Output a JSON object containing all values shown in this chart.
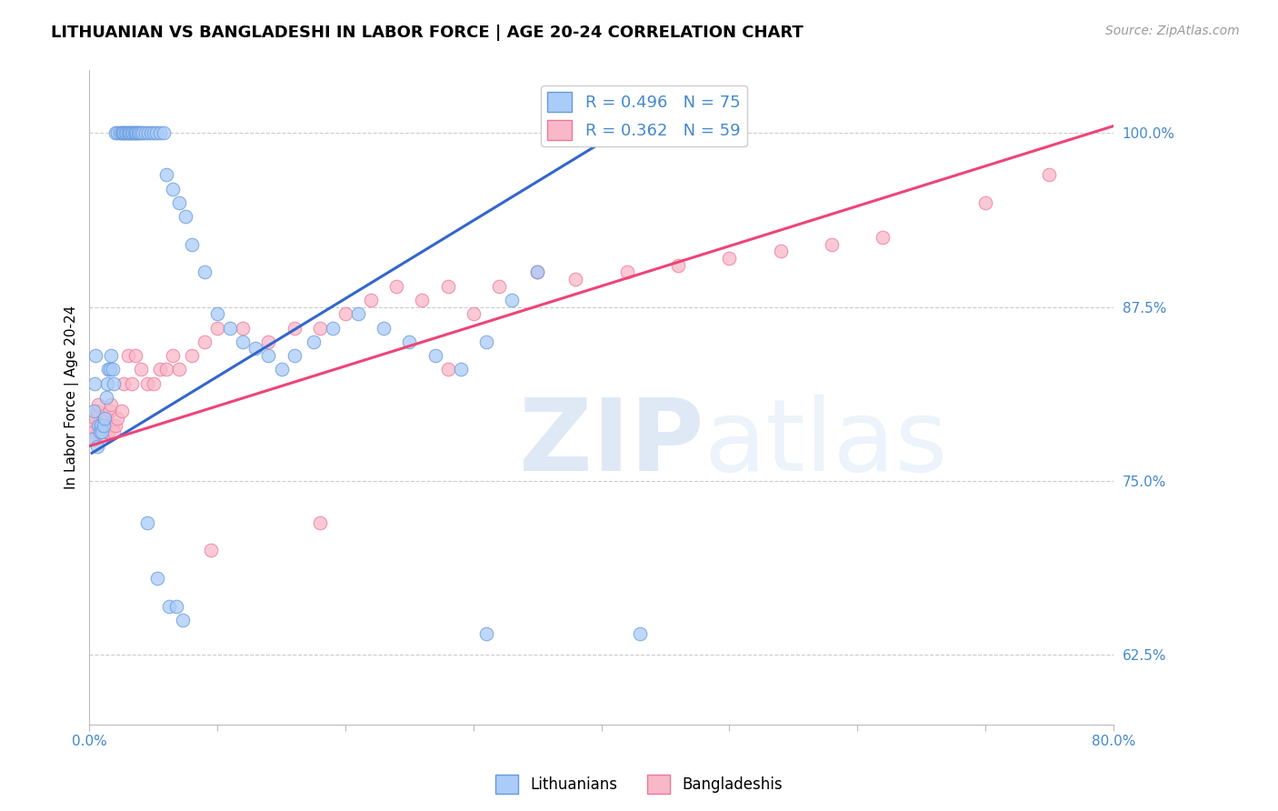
{
  "title": "LITHUANIAN VS BANGLADESHI IN LABOR FORCE | AGE 20-24 CORRELATION CHART",
  "source": "Source: ZipAtlas.com",
  "ylabel": "In Labor Force | Age 20-24",
  "xlim": [
    0.0,
    0.8
  ],
  "ylim": [
    0.575,
    1.045
  ],
  "yticks": [
    0.625,
    0.75,
    0.875,
    1.0
  ],
  "ytick_labels": [
    "62.5%",
    "75.0%",
    "87.5%",
    "100.0%"
  ],
  "xticks": [
    0.0,
    0.1,
    0.2,
    0.3,
    0.4,
    0.5,
    0.6,
    0.7,
    0.8
  ],
  "xtick_labels": [
    "0.0%",
    "",
    "",
    "",
    "",
    "",
    "",
    "",
    "80.0%"
  ],
  "blue_R": 0.496,
  "blue_N": 75,
  "pink_R": 0.362,
  "pink_N": 59,
  "blue_color": "#aaccf8",
  "pink_color": "#f9b8c8",
  "blue_edge": "#6699dd",
  "pink_edge": "#ee7799",
  "trend_blue": "#3366cc",
  "trend_pink": "#ee4477",
  "axis_color": "#4488cc",
  "grid_color": "#cccccc",
  "title_fontsize": 13,
  "source_fontsize": 10,
  "legend_fontsize": 13,
  "axis_label_fontsize": 11,
  "tick_fontsize": 11,
  "blue_x": [
    0.02,
    0.022,
    0.024,
    0.025,
    0.026,
    0.027,
    0.028,
    0.029,
    0.03,
    0.031,
    0.032,
    0.033,
    0.034,
    0.035,
    0.036,
    0.037,
    0.038,
    0.039,
    0.04,
    0.042,
    0.044,
    0.046,
    0.048,
    0.05,
    0.052,
    0.055,
    0.058,
    0.002,
    0.003,
    0.004,
    0.005,
    0.006,
    0.007,
    0.008,
    0.009,
    0.01,
    0.011,
    0.012,
    0.013,
    0.014,
    0.015,
    0.016,
    0.017,
    0.018,
    0.019,
    0.06,
    0.065,
    0.07,
    0.075,
    0.08,
    0.09,
    0.1,
    0.11,
    0.12,
    0.13,
    0.14,
    0.15,
    0.16,
    0.175,
    0.19,
    0.21,
    0.23,
    0.25,
    0.27,
    0.29,
    0.31,
    0.33,
    0.35,
    0.045,
    0.053,
    0.062,
    0.068,
    0.073,
    0.31,
    0.43
  ],
  "blue_y": [
    1.0,
    1.0,
    1.0,
    1.0,
    1.0,
    1.0,
    1.0,
    1.0,
    1.0,
    1.0,
    1.0,
    1.0,
    1.0,
    1.0,
    1.0,
    1.0,
    1.0,
    1.0,
    1.0,
    1.0,
    1.0,
    1.0,
    1.0,
    1.0,
    1.0,
    1.0,
    1.0,
    0.78,
    0.8,
    0.82,
    0.84,
    0.775,
    0.79,
    0.785,
    0.79,
    0.785,
    0.79,
    0.795,
    0.81,
    0.82,
    0.83,
    0.83,
    0.84,
    0.83,
    0.82,
    0.97,
    0.96,
    0.95,
    0.94,
    0.92,
    0.9,
    0.87,
    0.86,
    0.85,
    0.845,
    0.84,
    0.83,
    0.84,
    0.85,
    0.86,
    0.87,
    0.86,
    0.85,
    0.84,
    0.83,
    0.85,
    0.88,
    0.9,
    0.72,
    0.68,
    0.66,
    0.66,
    0.65,
    0.64,
    0.64
  ],
  "pink_x": [
    0.002,
    0.003,
    0.004,
    0.005,
    0.006,
    0.007,
    0.008,
    0.009,
    0.01,
    0.011,
    0.012,
    0.013,
    0.014,
    0.015,
    0.016,
    0.017,
    0.018,
    0.019,
    0.02,
    0.022,
    0.025,
    0.027,
    0.03,
    0.033,
    0.036,
    0.04,
    0.045,
    0.05,
    0.055,
    0.06,
    0.065,
    0.07,
    0.08,
    0.09,
    0.1,
    0.12,
    0.14,
    0.16,
    0.18,
    0.2,
    0.22,
    0.24,
    0.26,
    0.28,
    0.3,
    0.32,
    0.35,
    0.38,
    0.42,
    0.46,
    0.5,
    0.54,
    0.58,
    0.62,
    0.7,
    0.75,
    0.18,
    0.095,
    0.28
  ],
  "pink_y": [
    0.79,
    0.785,
    0.78,
    0.795,
    0.8,
    0.805,
    0.79,
    0.785,
    0.79,
    0.785,
    0.79,
    0.795,
    0.79,
    0.785,
    0.8,
    0.805,
    0.79,
    0.785,
    0.79,
    0.795,
    0.8,
    0.82,
    0.84,
    0.82,
    0.84,
    0.83,
    0.82,
    0.82,
    0.83,
    0.83,
    0.84,
    0.83,
    0.84,
    0.85,
    0.86,
    0.86,
    0.85,
    0.86,
    0.86,
    0.87,
    0.88,
    0.89,
    0.88,
    0.89,
    0.87,
    0.89,
    0.9,
    0.895,
    0.9,
    0.905,
    0.91,
    0.915,
    0.92,
    0.925,
    0.95,
    0.97,
    0.72,
    0.7,
    0.83
  ],
  "blue_trend_x": [
    0.002,
    0.43
  ],
  "blue_trend_y": [
    0.77,
    1.01
  ],
  "pink_trend_x": [
    0.0,
    0.8
  ],
  "pink_trend_y": [
    0.775,
    1.005
  ]
}
